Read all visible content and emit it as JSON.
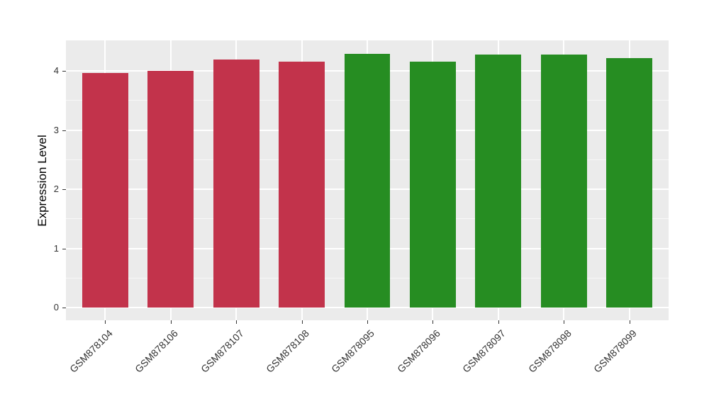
{
  "chart_data": {
    "type": "bar",
    "title": "",
    "ylabel": "Expression Level",
    "xlabel": "",
    "categories": [
      "GSM878104",
      "GSM878106",
      "GSM878107",
      "GSM878108",
      "GSM878095",
      "GSM878096",
      "GSM878097",
      "GSM878098",
      "GSM878099"
    ],
    "values": [
      3.96,
      4.0,
      4.19,
      4.16,
      4.29,
      4.15,
      4.28,
      4.28,
      4.22
    ],
    "groups": [
      "group1",
      "group1",
      "group1",
      "group1",
      "group2",
      "group2",
      "group2",
      "group2",
      "group2"
    ],
    "group_colors": {
      "group1": "#c2334b",
      "group2": "#268d22"
    },
    "yticks": [
      0,
      1,
      2,
      3,
      4
    ],
    "yminor": [
      0.5,
      1.5,
      2.5,
      3.5
    ],
    "ylim": [
      -0.215,
      4.515
    ],
    "bar_width_frac": 0.7,
    "x_expand": 0.6,
    "panel_bg": "#ebebeb",
    "grid_color": "#ffffff",
    "tick_mark_color": "#333333",
    "tick_label_color": "#333333",
    "legend": "none"
  }
}
